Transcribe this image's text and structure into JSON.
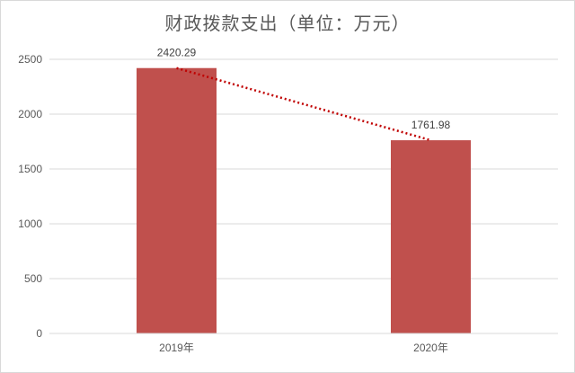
{
  "chart_data": {
    "type": "bar",
    "title": "财政拨款支出（单位：万元）",
    "categories": [
      "2019年",
      "2020年"
    ],
    "values": [
      2420.29,
      1761.98
    ],
    "data_labels": [
      "2420.29",
      "1761.98"
    ],
    "ylim": [
      0,
      2500
    ],
    "yticks": [
      "0",
      "500",
      "1000",
      "1500",
      "2000",
      "2500"
    ],
    "grid": true,
    "trendline": "dotted",
    "colors": {
      "bar": "#c0504d",
      "trend": "#c00000",
      "grid": "#d9d9d9"
    }
  }
}
